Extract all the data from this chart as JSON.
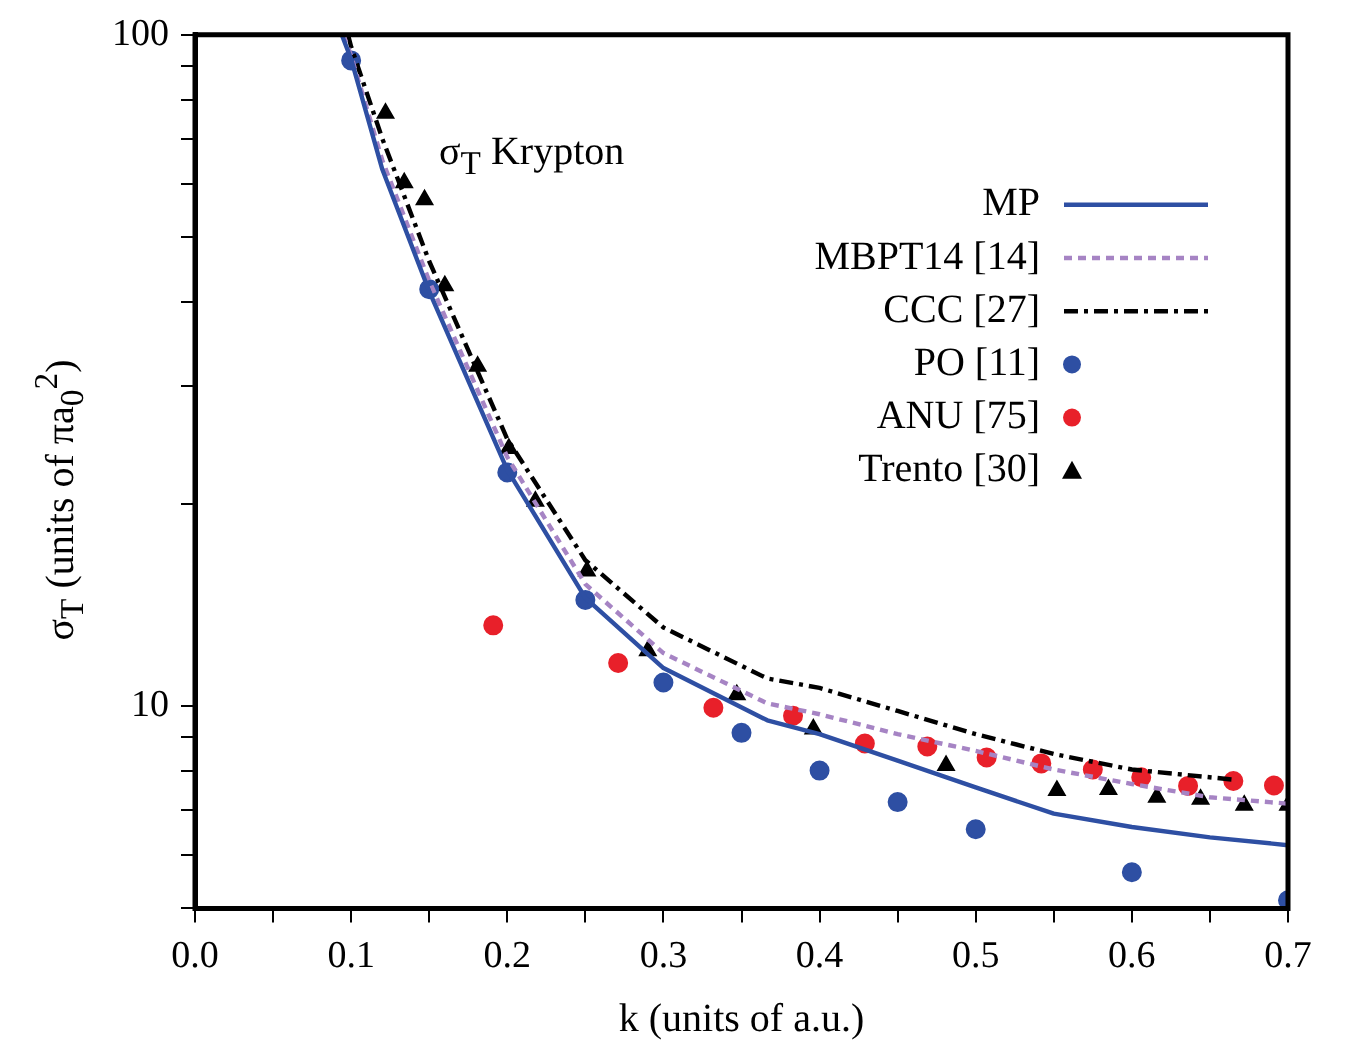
{
  "chart_data": {
    "type": "line",
    "xlabel": "k (units of a.u.)",
    "ylabel": "σ$_{T}$  (units of πa$_{0}$$^{2}$)",
    "annotations": [
      "σ$_{T}$ Krypton"
    ],
    "xlim": [
      0,
      0.7
    ],
    "ylim": [
      5,
      100
    ],
    "log": "y",
    "grid": false,
    "legend": "top right",
    "xticks": [
      {
        "value": 0,
        "label": "0.0"
      },
      {
        "value": 0.05,
        "label": null
      },
      {
        "value": 0.1,
        "label": "0.1"
      },
      {
        "value": 0.15,
        "label": null
      },
      {
        "value": 0.2,
        "label": "0.2"
      },
      {
        "value": 0.25,
        "label": null
      },
      {
        "value": 0.3,
        "label": "0.3"
      },
      {
        "value": 0.35,
        "label": null
      },
      {
        "value": 0.4,
        "label": "0.4"
      },
      {
        "value": 0.45,
        "label": null
      },
      {
        "value": 0.5,
        "label": "0.5"
      },
      {
        "value": 0.55,
        "label": null
      },
      {
        "value": 0.6,
        "label": "0.6"
      },
      {
        "value": 0.65,
        "label": null
      },
      {
        "value": 0.7,
        "label": "0.7"
      }
    ],
    "yticks": [
      {
        "value": 5,
        "label": null
      },
      {
        "value": 6,
        "label": null
      },
      {
        "value": 7,
        "label": null
      },
      {
        "value": 8,
        "label": null
      },
      {
        "value": 9,
        "label": null
      },
      10,
      {
        "value": 20,
        "label": null
      },
      {
        "value": 30,
        "label": null
      },
      {
        "value": 40,
        "label": null
      },
      {
        "value": 50,
        "label": null
      },
      {
        "value": 60,
        "label": null
      },
      {
        "value": 70,
        "label": null
      },
      {
        "value": 80,
        "label": null
      },
      {
        "value": 90,
        "label": null
      },
      100
    ],
    "series": [
      {
        "name": "MP",
        "color": "#2e4fa3",
        "line_style": "solid",
        "marker": "none",
        "x": [
          0.094,
          0.1,
          0.12,
          0.15,
          0.2,
          0.25,
          0.3,
          0.3665,
          0.4,
          0.45,
          0.5,
          0.55,
          0.6,
          0.65,
          0.7
        ],
        "values": [
          100,
          92,
          63,
          41.5,
          22.5,
          14.5,
          11.4,
          9.53,
          9.09,
          8.3,
          7.57,
          6.92,
          6.61,
          6.38,
          6.21
        ]
      },
      {
        "name": "MBPT14 [14]",
        "color": "#a684c4",
        "line_style": "dotted",
        "marker": "none",
        "x": [
          0.095,
          0.1,
          0.12,
          0.15,
          0.2,
          0.25,
          0.3,
          0.3665,
          0.4,
          0.45,
          0.5,
          0.55,
          0.6,
          0.65,
          0.7
        ],
        "values": [
          100,
          93,
          65,
          43,
          23.5,
          15.2,
          12,
          10.1,
          9.73,
          9.09,
          8.58,
          8.05,
          7.66,
          7.32,
          7.16
        ]
      },
      {
        "name": "CCC [27]",
        "color": "#000000",
        "line_style": "dashed",
        "marker": "none",
        "x": [
          0.098,
          0.1,
          0.12,
          0.15,
          0.2,
          0.25,
          0.3,
          0.3665,
          0.4,
          0.45,
          0.5,
          0.55,
          0.6,
          0.664
        ],
        "values": [
          100,
          96,
          70,
          46,
          25,
          16.5,
          13.1,
          11,
          10.65,
          9.84,
          9.09,
          8.49,
          8.05,
          7.78
        ]
      },
      {
        "name": "PO [11]",
        "type": "scatter",
        "color": "#2e4fa3",
        "marker": "circle",
        "x": [
          0.1,
          0.15,
          0.2,
          0.25,
          0.3,
          0.35,
          0.4,
          0.45,
          0.5,
          0.6,
          0.7
        ],
        "values": [
          91.6,
          41.8,
          22.3,
          14.4,
          10.85,
          9.13,
          8.02,
          7.2,
          6.56,
          5.66,
          5.14
        ]
      },
      {
        "name": "ANU [75]",
        "type": "scatter",
        "color": "#e8202a",
        "marker": "circle",
        "x": [
          0.191,
          0.271,
          0.332,
          0.383,
          0.429,
          0.469,
          0.507,
          0.542,
          0.575,
          0.606,
          0.636,
          0.665,
          0.691
        ],
        "values": [
          13.2,
          11.6,
          9.95,
          9.68,
          8.8,
          8.71,
          8.39,
          8.22,
          8.05,
          7.84,
          7.61,
          7.74,
          7.62
        ]
      },
      {
        "name": "Trento [30]",
        "type": "scatter",
        "color": "#000000",
        "marker": "triangle",
        "x": [
          0.122,
          0.134,
          0.147,
          0.16,
          0.181,
          0.201,
          0.218,
          0.251,
          0.29,
          0.347,
          0.396,
          0.481,
          0.552,
          0.585,
          0.616,
          0.644,
          0.672,
          0.7
        ],
        "values": [
          76.4,
          60.2,
          56.8,
          42.3,
          32.1,
          24.2,
          20.2,
          15.9,
          12.1,
          10.4,
          9.25,
          8.16,
          7.49,
          7.52,
          7.32,
          7.27,
          7.12,
          7.12
        ]
      }
    ]
  }
}
